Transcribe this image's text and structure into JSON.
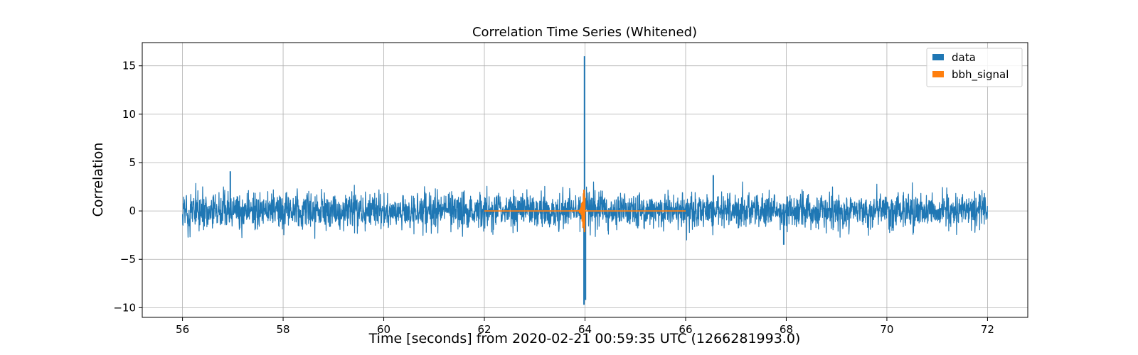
{
  "chart_data": {
    "type": "line",
    "title": "Correlation Time Series (Whitened)",
    "xlabel": "Time [seconds] from 2020-02-21 00:59:35 UTC (1266281993.0)",
    "ylabel": "Correlation",
    "xlim": [
      55.2,
      72.8
    ],
    "ylim": [
      -11.0,
      17.4
    ],
    "xticks": [
      56,
      58,
      60,
      62,
      64,
      66,
      68,
      70,
      72
    ],
    "yticks": [
      -10,
      -5,
      0,
      5,
      10,
      15
    ],
    "xtick_labels": [
      "56",
      "58",
      "60",
      "62",
      "64",
      "66",
      "68",
      "70",
      "72"
    ],
    "ytick_labels": [
      "−10",
      "−5",
      "0",
      "5",
      "10",
      "15"
    ],
    "grid": true,
    "legend_position": "top-right",
    "series": [
      {
        "name": "data",
        "color": "#1f77b4",
        "x_range": [
          56,
          72
        ],
        "typical_envelope": [
          -2.5,
          2.5
        ],
        "peaks": [
          {
            "x": 63.99,
            "y": 16.0
          },
          {
            "x": 63.98,
            "y": -9.7
          },
          {
            "x": 64.01,
            "y": -9.2
          },
          {
            "x": 56.95,
            "y": 4.1
          },
          {
            "x": 66.55,
            "y": 3.7
          },
          {
            "x": 67.95,
            "y": -3.5
          }
        ]
      },
      {
        "name": "bbh_signal",
        "color": "#ff7f0e",
        "x_range": [
          62,
          66
        ],
        "baseline": 0.0,
        "peaks": [
          {
            "x": 63.98,
            "y": 2.2
          },
          {
            "x": 63.99,
            "y": -2.2
          }
        ]
      }
    ]
  }
}
